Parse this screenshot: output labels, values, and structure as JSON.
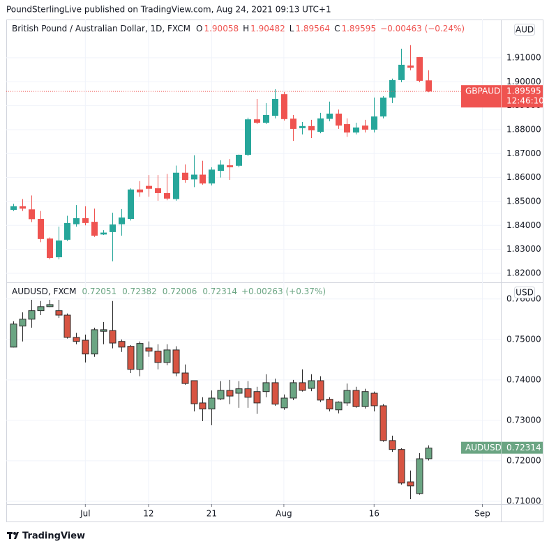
{
  "published": "PoundSterlingLive published on TradingView.com, Aug 24, 2021 09:13 UTC+1",
  "brand": "TradingView",
  "chart_data": [
    {
      "type": "candlestick",
      "title": "British Pound / Australian Dollar, 1D, FXCM",
      "ohlc_letters": [
        "O",
        "H",
        "L",
        "C"
      ],
      "change": "−0.00463 (−0.24%)",
      "symbol_label": "GBPAUD",
      "currency": "AUD",
      "countdown": "12:46:10",
      "up_color": "#26a69a",
      "down_color": "#ef5350",
      "last_price_line": true,
      "open": [
        1.8465,
        1.848,
        1.8467,
        1.8427,
        1.8345,
        1.8267,
        1.834,
        1.8405,
        1.843,
        1.8415,
        1.8362,
        1.8372,
        1.8405,
        1.8427,
        1.855,
        1.8565,
        1.8555,
        1.8535,
        1.851,
        1.862,
        1.8592,
        1.8612,
        1.8575,
        1.8628,
        1.8651,
        1.8649,
        1.8695,
        1.8843,
        1.8829,
        1.8858,
        1.8948,
        1.8846,
        1.8806,
        1.8815,
        1.8791,
        1.8845,
        1.8867,
        1.8823,
        1.8788,
        1.8817,
        1.88,
        1.8855,
        1.8934,
        1.9007,
        1.9068,
        1.9103,
        1.90058
      ],
      "high": [
        1.849,
        1.851,
        1.8525,
        1.846,
        1.835,
        1.8395,
        1.844,
        1.8485,
        1.848,
        1.847,
        1.838,
        1.8453,
        1.8468,
        1.8555,
        1.8585,
        1.861,
        1.861,
        1.8615,
        1.865,
        1.8655,
        1.8693,
        1.867,
        1.8643,
        1.8672,
        1.8677,
        1.8696,
        1.885,
        1.8928,
        1.8911,
        1.8969,
        1.8957,
        1.8861,
        1.8832,
        1.8841,
        1.887,
        1.8917,
        1.8884,
        1.8847,
        1.8829,
        1.8841,
        1.8934,
        1.894,
        1.9013,
        1.9138,
        1.9153,
        1.9103,
        1.90482
      ],
      "low": [
        1.846,
        1.846,
        1.8414,
        1.833,
        1.8258,
        1.8258,
        1.8335,
        1.8395,
        1.84,
        1.8352,
        1.836,
        1.825,
        1.8357,
        1.842,
        1.852,
        1.852,
        1.8503,
        1.8505,
        1.8503,
        1.8578,
        1.856,
        1.857,
        1.8567,
        1.86,
        1.859,
        1.8643,
        1.8689,
        1.8823,
        1.8823,
        1.8847,
        1.8838,
        1.8753,
        1.878,
        1.8765,
        1.8785,
        1.8835,
        1.8803,
        1.877,
        1.878,
        1.8788,
        1.8788,
        1.8847,
        1.8911,
        1.8998,
        1.9048,
        1.8998,
        1.89564
      ],
      "close": [
        1.848,
        1.847,
        1.8426,
        1.8343,
        1.8264,
        1.8337,
        1.841,
        1.843,
        1.841,
        1.8357,
        1.837,
        1.8404,
        1.8433,
        1.855,
        1.8538,
        1.8553,
        1.8535,
        1.8512,
        1.862,
        1.859,
        1.8612,
        1.8575,
        1.8633,
        1.8654,
        1.8643,
        1.8695,
        1.8843,
        1.8829,
        1.8861,
        1.8928,
        1.8844,
        1.8803,
        1.8815,
        1.8797,
        1.8847,
        1.8867,
        1.8817,
        1.8788,
        1.8809,
        1.88,
        1.8855,
        1.8934,
        1.9007,
        1.9071,
        1.9059,
        1.9004,
        1.89595
      ],
      "ylim": [
        1.8162,
        1.926
      ],
      "yticks": [
        {
          "value": 1.82,
          "label": "1.82000"
        },
        {
          "value": 1.83,
          "label": "1.83000"
        },
        {
          "value": 1.84,
          "label": "1.84000"
        },
        {
          "value": 1.85,
          "label": "1.85000"
        },
        {
          "value": 1.86,
          "label": "1.86000"
        },
        {
          "value": 1.87,
          "label": "1.87000"
        },
        {
          "value": 1.88,
          "label": "1.88000"
        },
        {
          "value": 1.89,
          "label": "1.89000"
        },
        {
          "value": 1.9,
          "label": "1.90000"
        },
        {
          "value": 1.91,
          "label": "1.91000"
        }
      ],
      "xlim": [
        -0.76,
        54.05
      ],
      "grid": true
    },
    {
      "type": "candlestick",
      "title": "AUDUSD, FXCM",
      "change": "+0.00263 (+0.37%)",
      "symbol_label": "AUDUSD",
      "currency": "USD",
      "up_color": "#6ba583",
      "down_color": "#d75442",
      "border_color": "#2b2b2b",
      "last_price_line": false,
      "open": [
        0.7481,
        0.7533,
        0.755,
        0.7571,
        0.7581,
        0.7571,
        0.756,
        0.7505,
        0.7498,
        0.7464,
        0.752,
        0.7522,
        0.7495,
        0.7483,
        0.7426,
        0.7479,
        0.7471,
        0.7443,
        0.7474,
        0.7417,
        0.7398,
        0.7343,
        0.7328,
        0.7353,
        0.7374,
        0.7367,
        0.7378,
        0.7371,
        0.7371,
        0.7393,
        0.7331,
        0.7355,
        0.7393,
        0.7379,
        0.7398,
        0.7352,
        0.7326,
        0.7343,
        0.7374,
        0.7334,
        0.7367,
        0.7336,
        0.725,
        0.7228,
        0.7148,
        0.7119,
        0.72051
      ],
      "high": [
        0.7545,
        0.7567,
        0.7598,
        0.7595,
        0.7598,
        0.7598,
        0.7564,
        0.7516,
        0.7512,
        0.7529,
        0.7543,
        0.7595,
        0.75,
        0.7486,
        0.7495,
        0.7495,
        0.7488,
        0.7488,
        0.7483,
        0.7438,
        0.7398,
        0.7357,
        0.7374,
        0.7397,
        0.74,
        0.7397,
        0.7397,
        0.7383,
        0.7414,
        0.7403,
        0.7364,
        0.74,
        0.7426,
        0.7414,
        0.7409,
        0.7357,
        0.7347,
        0.7391,
        0.7383,
        0.7378,
        0.7371,
        0.734,
        0.7262,
        0.7231,
        0.7176,
        0.7219,
        0.72382
      ],
      "low": [
        0.748,
        0.7495,
        0.7529,
        0.756,
        0.758,
        0.7553,
        0.7502,
        0.7488,
        0.7443,
        0.7457,
        0.7488,
        0.7478,
        0.7469,
        0.7417,
        0.7409,
        0.7457,
        0.7426,
        0.7436,
        0.7409,
        0.7388,
        0.7322,
        0.7298,
        0.7288,
        0.735,
        0.734,
        0.7331,
        0.7331,
        0.7316,
        0.7357,
        0.7336,
        0.7326,
        0.735,
        0.7371,
        0.7372,
        0.7345,
        0.7322,
        0.7317,
        0.7336,
        0.7331,
        0.7329,
        0.7322,
        0.7247,
        0.7222,
        0.7141,
        0.7105,
        0.7116,
        0.72006
      ],
      "close": [
        0.7538,
        0.755,
        0.7571,
        0.7581,
        0.7586,
        0.756,
        0.7505,
        0.7495,
        0.7464,
        0.7524,
        0.7524,
        0.7491,
        0.7481,
        0.7426,
        0.749,
        0.7471,
        0.7443,
        0.7474,
        0.7417,
        0.7391,
        0.7341,
        0.7328,
        0.7355,
        0.7374,
        0.736,
        0.7378,
        0.7357,
        0.7343,
        0.7393,
        0.734,
        0.7355,
        0.7393,
        0.7374,
        0.7398,
        0.735,
        0.7328,
        0.7345,
        0.7374,
        0.7334,
        0.7371,
        0.7336,
        0.725,
        0.7228,
        0.7145,
        0.7138,
        0.7205,
        0.72314
      ],
      "ylim": [
        0.7093,
        0.7641
      ],
      "yticks": [
        {
          "value": 0.71,
          "label": "0.71000"
        },
        {
          "value": 0.72,
          "label": "0.72000"
        },
        {
          "value": 0.73,
          "label": "0.73000"
        },
        {
          "value": 0.74,
          "label": "0.74000"
        },
        {
          "value": 0.75,
          "label": "0.75000"
        },
        {
          "value": 0.76,
          "label": "0.76000"
        }
      ],
      "xlim": [
        -0.76,
        54.05
      ],
      "grid": true,
      "xticks": [
        {
          "value": 8,
          "label": "Jul"
        },
        {
          "value": 15,
          "label": "12"
        },
        {
          "value": 22,
          "label": "21"
        },
        {
          "value": 30,
          "label": "Aug"
        },
        {
          "value": 40,
          "label": "16"
        },
        {
          "value": 52,
          "label": "Sep"
        }
      ]
    }
  ]
}
